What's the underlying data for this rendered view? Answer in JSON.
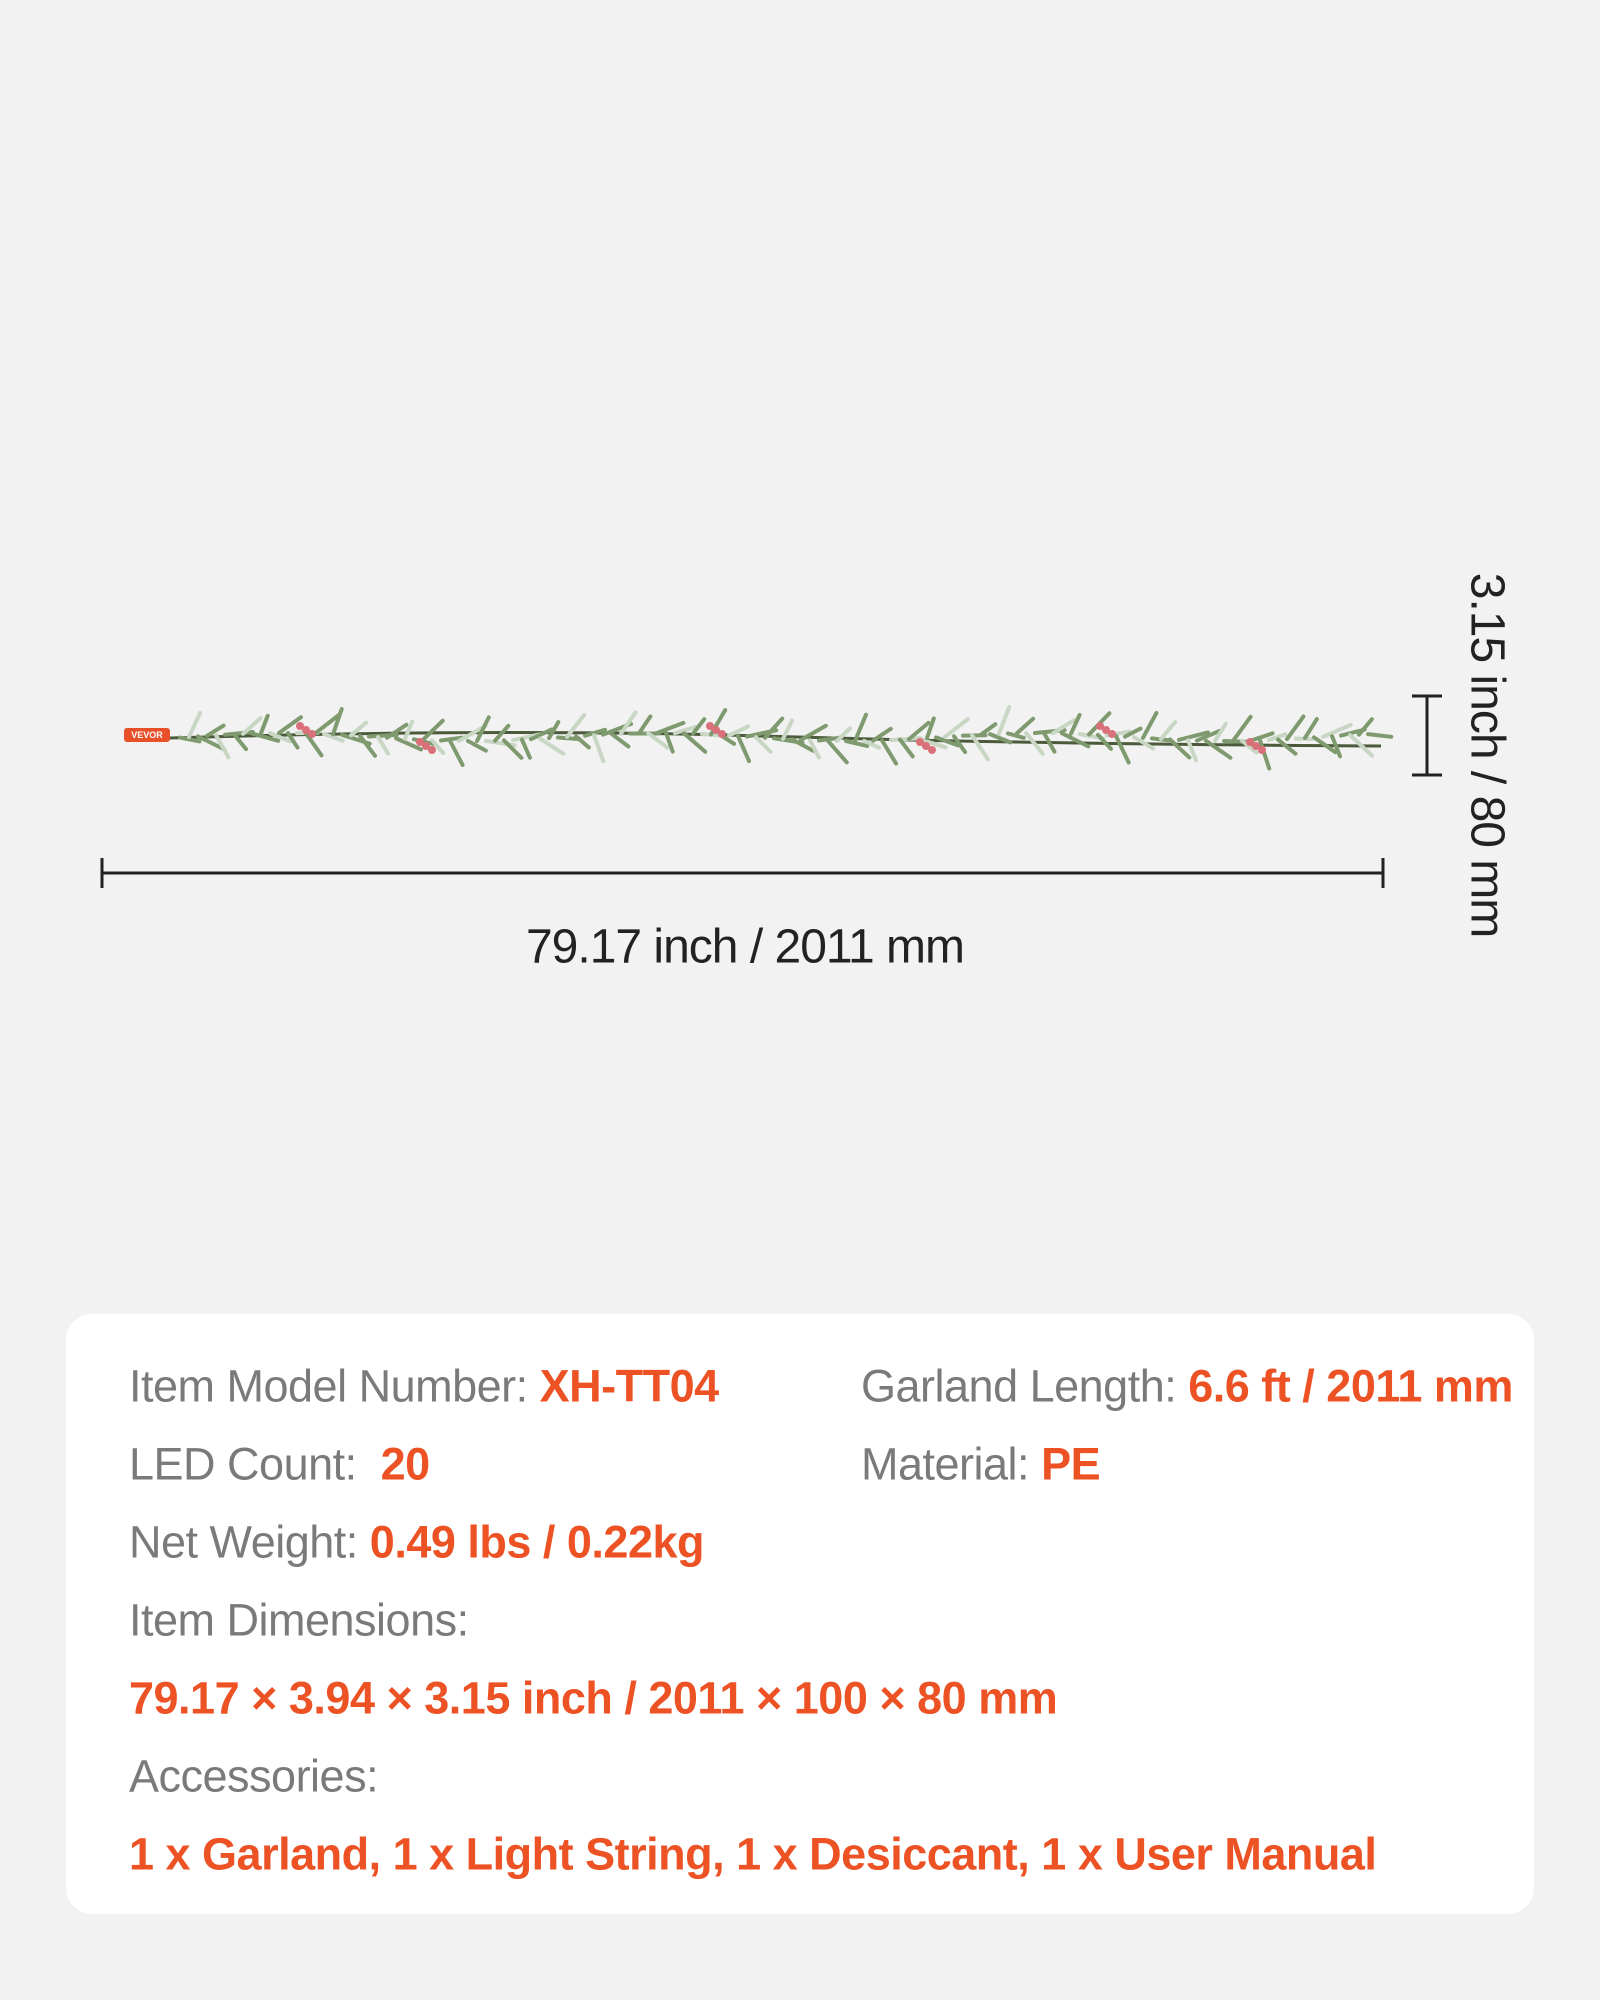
{
  "dimensions": {
    "length_label": "79.17 inch /  2011 mm",
    "height_label": "3.15 inch /  80 mm"
  },
  "specs": {
    "model": {
      "label": "Item Model Number:",
      "value": "XH-TT04"
    },
    "length": {
      "label": "Garland Length:",
      "value": "6.6 ft / 2011 mm"
    },
    "led": {
      "label": "LED Count:",
      "value": "20"
    },
    "material": {
      "label": "Material:",
      "value": "PE"
    },
    "weight": {
      "label": "Net Weight:",
      "value": "0.49 lbs / 0.22kg"
    },
    "dimensions": {
      "label": "Item Dimensions:",
      "value": "79.17 × 3.94 × 3.15 inch  / 2011 × 100 × 80 mm"
    },
    "accessories": {
      "label": "Accessories:",
      "value": "1 x Garland, 1 x Light String, 1 x Desiccant, 1 x User Manual"
    }
  },
  "brand": "VEVOR"
}
